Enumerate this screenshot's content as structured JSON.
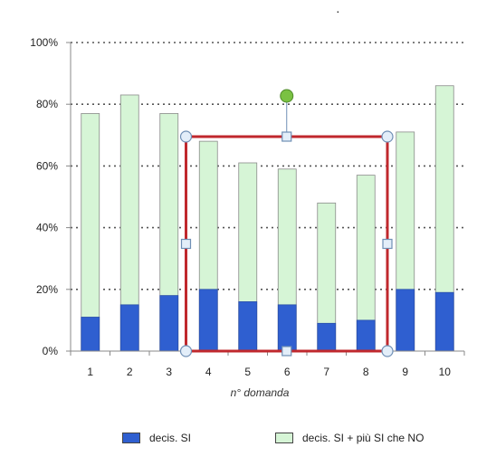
{
  "chart_data": {
    "type": "bar",
    "stacked": false,
    "overlapped_bars": true,
    "categories": [
      "1",
      "2",
      "3",
      "4",
      "5",
      "6",
      "7",
      "8",
      "9",
      "10"
    ],
    "series": [
      {
        "name": "decis. SI + più SI che NO",
        "color": "#d6f5d6",
        "values": [
          77,
          83,
          77,
          68,
          61,
          59,
          48,
          57,
          71,
          86
        ]
      },
      {
        "name": "decis. SI",
        "color": "#2f5fd0",
        "values": [
          11,
          15,
          18,
          20,
          16,
          15,
          9,
          10,
          20,
          19
        ]
      }
    ],
    "yticks": [
      "0%",
      "20%",
      "40%",
      "60%",
      "80%",
      "100%"
    ],
    "ylim": [
      0,
      100
    ],
    "xlabel": "n° domanda",
    "ylabel": "",
    "grid": "horizontal dotted",
    "legend_position": "bottom",
    "selection_box": {
      "from_category": "4",
      "to_category": "8",
      "color": "#c0282d"
    }
  },
  "colors": {
    "grid": "#555555",
    "axis": "#888888",
    "handle_fill": "#e3eef9",
    "handle_stroke": "#6f8fb5",
    "rotate_handle": "#7ac143"
  },
  "stray_mark": "·"
}
